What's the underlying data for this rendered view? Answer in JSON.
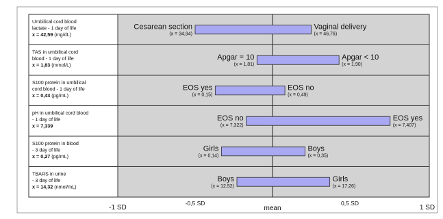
{
  "chart_data": {
    "type": "bar",
    "orientation": "horizontal",
    "xlim": [
      -1,
      1
    ],
    "x_ticks": [
      {
        "value": -1,
        "label": "-1 SD"
      },
      {
        "value": -0.5,
        "label": "-0,5 SD"
      },
      {
        "value": 0,
        "label": "mean"
      },
      {
        "value": 0.5,
        "label": "0,5 SD"
      },
      {
        "value": 1,
        "label": "1 SD"
      }
    ],
    "grid": false,
    "colors": {
      "bar_fill": "#a9a8f2",
      "bar_stroke": "#3a3a3a",
      "plot_bg": "#d3d3d3",
      "border": "#333333"
    },
    "rows": [
      {
        "label_lines": [
          "Umbilical cord blood",
          "lactate - 1 day of life"
        ],
        "value_prefix": "x = ",
        "value": "42,59",
        "unit": " (mg/dL)",
        "left": -0.5,
        "right": 0.25,
        "left_label": "Cesarean section",
        "left_sub": "(x = 34,94)",
        "right_label": "Vaginal delivery",
        "right_sub": "(x = 46,76)"
      },
      {
        "label_lines": [
          "TAS in umbilical cord",
          "blood - 1 day of life"
        ],
        "value_prefix": "x = ",
        "value": "1,83",
        "unit": " (mmol/L)",
        "left": -0.1,
        "right": 0.43,
        "left_label": "Apgar = 10",
        "left_sub": "(x = 1,81)",
        "right_label": "Apgar < 10",
        "right_sub": "(x = 1,90)"
      },
      {
        "label_lines": [
          "S100 protein in umbilical",
          "cord blood - 1 day of life"
        ],
        "value_prefix": "x = ",
        "value": "0,43",
        "unit": " (pg/mL)",
        "left": -0.37,
        "right": 0.08,
        "left_label": "EOS yes",
        "left_sub": "(x = 0,15)",
        "right_label": "EOS no",
        "right_sub": "(x = 0,49)"
      },
      {
        "label_lines": [
          "pH in umbilical cord blood",
          "- 1 day of life"
        ],
        "value_prefix": "x = ",
        "value": "7,339",
        "unit": "",
        "left": -0.17,
        "right": 0.76,
        "left_label": "EOS no",
        "left_sub": "(x = 7,322)",
        "right_label": "EOS yes",
        "right_sub": "(x = 7,407)"
      },
      {
        "label_lines": [
          "S100 protein in blood",
          "- 3 day of life"
        ],
        "value_prefix": "x = ",
        "value": "0,27",
        "unit": " (pg/mL)",
        "left": -0.33,
        "right": 0.21,
        "left_label": "Girls",
        "left_sub": "(x = 0,14)",
        "right_label": "Boys",
        "right_sub": "(x = 0,35)"
      },
      {
        "label_lines": [
          "TBARS in urine",
          "- 3 day of life"
        ],
        "value_prefix": "x = ",
        "value": "14,32",
        "unit": " (nmol/mL)",
        "left": -0.23,
        "right": 0.37,
        "left_label": "Boys",
        "left_sub": "(x = 12,52)",
        "right_label": "Girls",
        "right_sub": "(x = 17,26)"
      }
    ]
  }
}
